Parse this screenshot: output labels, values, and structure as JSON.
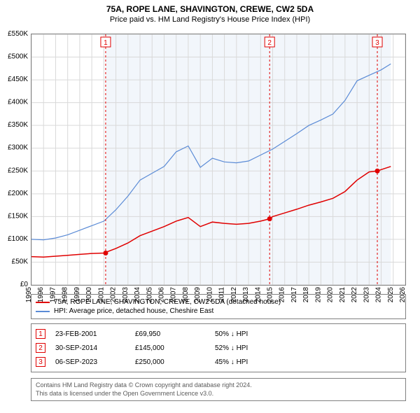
{
  "title": "75A, ROPE LANE, SHAVINGTON, CREWE, CW2 5DA",
  "subtitle": "Price paid vs. HM Land Registry's House Price Index (HPI)",
  "chart": {
    "type": "line",
    "background": "#ffffff",
    "plot_bg_blue_tint": "#f2f6fb",
    "grid_color": "#d9d9d9",
    "border_color": "#808080",
    "x_years": [
      1995,
      1996,
      1997,
      1998,
      1999,
      2000,
      2001,
      2002,
      2003,
      2004,
      2005,
      2006,
      2007,
      2008,
      2009,
      2010,
      2011,
      2012,
      2013,
      2014,
      2015,
      2016,
      2017,
      2018,
      2019,
      2020,
      2021,
      2022,
      2023,
      2024,
      2025,
      2026
    ],
    "x_tick_rotation": -90,
    "x_tick_fontsize": 10,
    "ylim": [
      0,
      550000
    ],
    "y_ticks": [
      0,
      50000,
      100000,
      150000,
      200000,
      250000,
      300000,
      350000,
      400000,
      450000,
      500000,
      550000
    ],
    "y_tick_labels": [
      "£0",
      "£50K",
      "£100K",
      "£150K",
      "£200K",
      "£250K",
      "£300K",
      "£350K",
      "£400K",
      "£450K",
      "£500K",
      "£550K"
    ],
    "y_tick_fontsize": 10,
    "series": [
      {
        "name": "price_paid",
        "label": "75A, ROPE LANE, SHAVINGTON, CREWE, CW2 5DA (detached house)",
        "color": "#e00000",
        "line_width": 1.5,
        "x": [
          1995,
          1996,
          1997,
          1998,
          1999,
          2000,
          2001,
          2002,
          2003,
          2004,
          2005,
          2006,
          2007,
          2008,
          2009,
          2010,
          2011,
          2012,
          2013,
          2014,
          2014.75,
          2015,
          2016,
          2017,
          2018,
          2019,
          2020,
          2021,
          2022,
          2023,
          2023.68,
          2024,
          2024.8
        ],
        "y": [
          62000,
          61000,
          63000,
          65000,
          67000,
          69000,
          69950,
          80000,
          92000,
          108000,
          118000,
          128000,
          140000,
          148000,
          128000,
          138000,
          135000,
          133000,
          135000,
          140000,
          145000,
          150000,
          158000,
          166000,
          175000,
          182000,
          190000,
          205000,
          230000,
          248000,
          250000,
          253000,
          260000
        ]
      },
      {
        "name": "hpi",
        "label": "HPI: Average price, detached house, Cheshire East",
        "color": "#5b8bd6",
        "line_width": 1.2,
        "x": [
          1995,
          1996,
          1997,
          1998,
          1999,
          2000,
          2001,
          2002,
          2003,
          2004,
          2005,
          2006,
          2007,
          2008,
          2009,
          2010,
          2011,
          2012,
          2013,
          2014,
          2015,
          2016,
          2017,
          2018,
          2019,
          2020,
          2021,
          2022,
          2023,
          2024,
          2024.8
        ],
        "y": [
          100000,
          99000,
          103000,
          110000,
          120000,
          130000,
          140000,
          165000,
          195000,
          230000,
          245000,
          260000,
          292000,
          305000,
          258000,
          278000,
          270000,
          268000,
          272000,
          285000,
          298000,
          315000,
          332000,
          350000,
          362000,
          375000,
          405000,
          448000,
          460000,
          472000,
          485000
        ]
      }
    ],
    "sale_markers": [
      {
        "n": "1",
        "x": 2001.15,
        "y": 69950,
        "date": "23-FEB-2001",
        "price": "£69,950",
        "diff": "50% ↓ HPI"
      },
      {
        "n": "2",
        "x": 2014.75,
        "y": 145000,
        "date": "30-SEP-2014",
        "price": "£145,000",
        "diff": "52% ↓ HPI"
      },
      {
        "n": "3",
        "x": 2023.68,
        "y": 250000,
        "date": "06-SEP-2023",
        "price": "£250,000",
        "diff": "45% ↓ HPI"
      }
    ],
    "marker_line_color": "#e00000",
    "marker_dot_color": "#e00000",
    "marker_badge_border": "#e00000"
  },
  "legend": {
    "row1": "75A, ROPE LANE, SHAVINGTON, CREWE, CW2 5DA (detached house)",
    "row2": "HPI: Average price, detached house, Cheshire East"
  },
  "footer": {
    "line1": "Contains HM Land Registry data © Crown copyright and database right 2024.",
    "line2": "This data is licensed under the Open Government Licence v3.0."
  }
}
